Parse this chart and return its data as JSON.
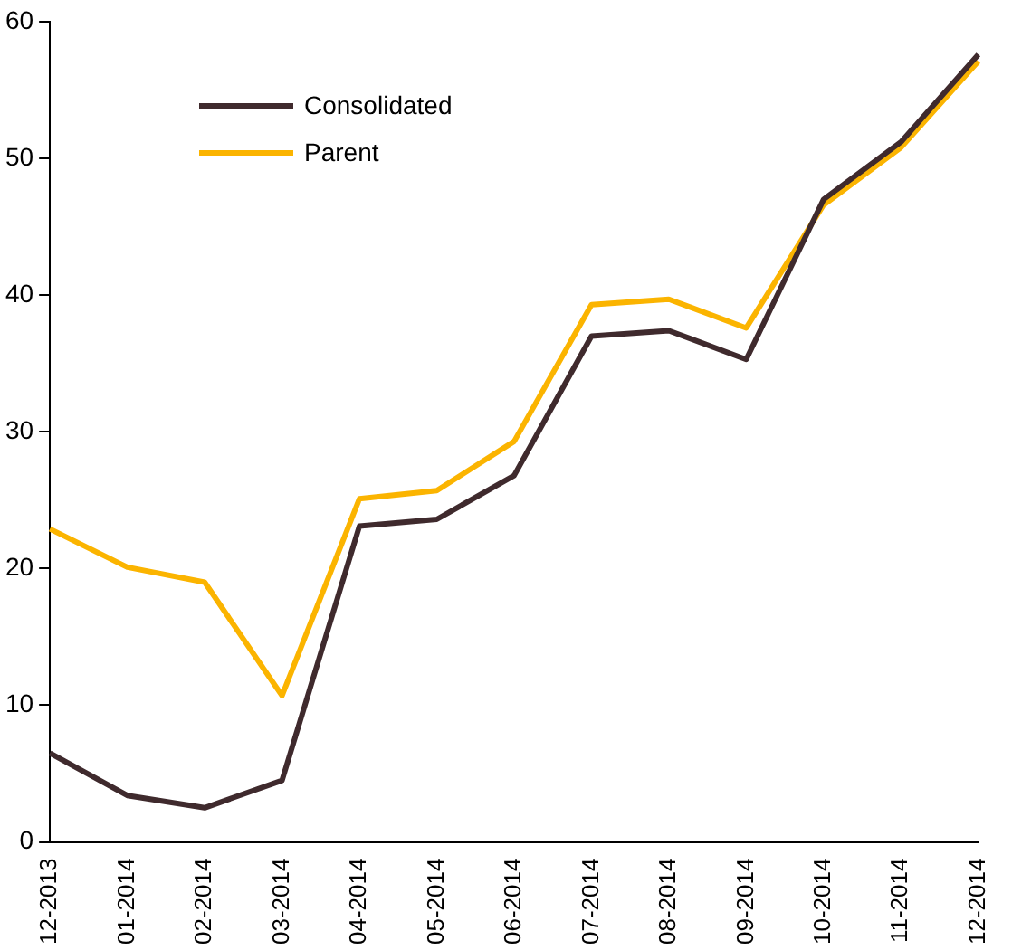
{
  "chart_data": {
    "type": "line",
    "categories": [
      "12-2013",
      "01-2014",
      "02-2014",
      "03-2014",
      "04-2014",
      "05-2014",
      "06-2014",
      "07-2014",
      "08-2014",
      "09-2014",
      "10-2014",
      "11-2014",
      "12-2014"
    ],
    "series": [
      {
        "name": "Consolidated",
        "color": "#3f2a2d",
        "values": [
          6.5,
          3.4,
          2.5,
          4.5,
          23.1,
          23.6,
          26.8,
          37.0,
          37.4,
          35.3,
          47.0,
          51.2,
          57.6
        ]
      },
      {
        "name": "Parent",
        "color": "#fbb400",
        "values": [
          22.9,
          20.1,
          19.0,
          10.7,
          25.1,
          25.7,
          29.3,
          39.3,
          39.7,
          37.6,
          46.6,
          50.8,
          57.1
        ]
      }
    ],
    "ylim": [
      0,
      60
    ],
    "yticks": [
      0,
      10,
      20,
      30,
      40,
      50,
      60
    ],
    "grid": false,
    "legend": "top left",
    "marker": "none",
    "line_style": "solid"
  }
}
